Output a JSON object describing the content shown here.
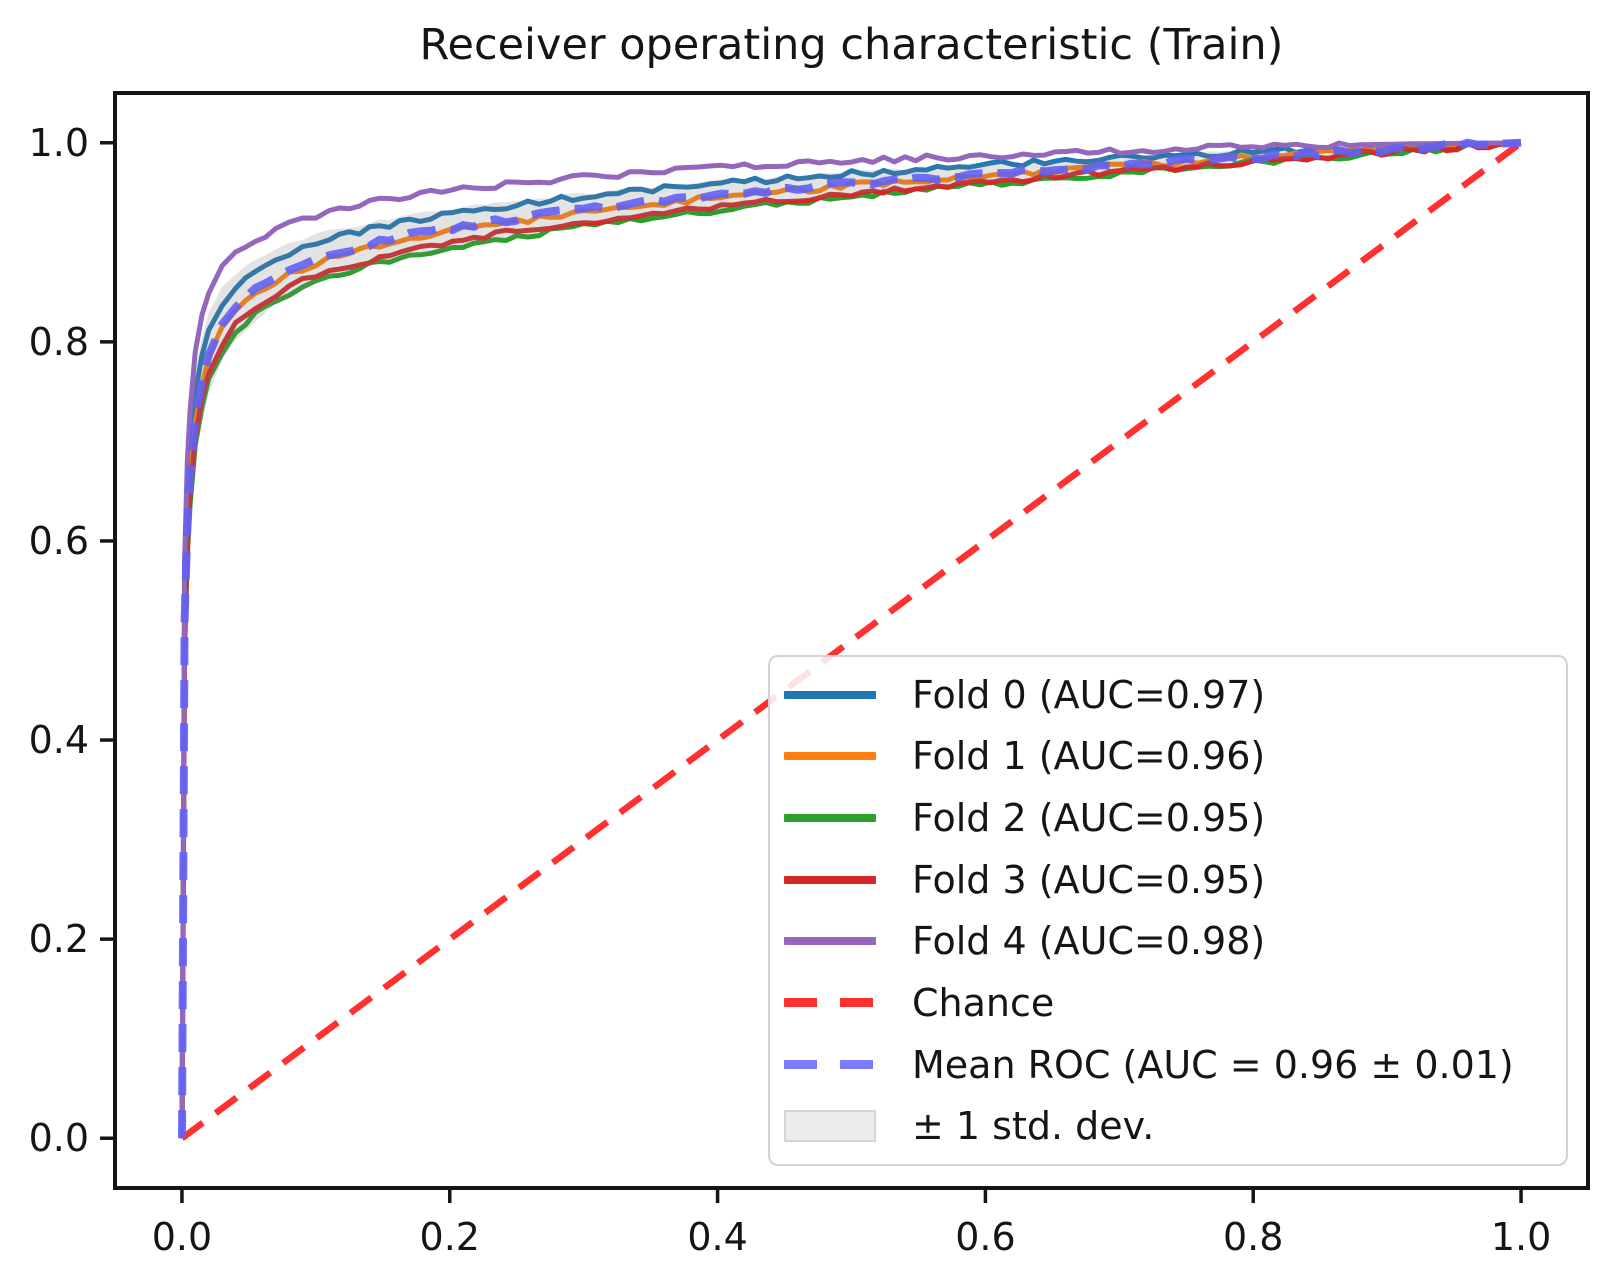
{
  "figure": {
    "title": "Receiver operating characteristic (Train)"
  },
  "chart_data": {
    "type": "line",
    "title": "Receiver operating characteristic (Train)",
    "xlabel": "",
    "ylabel": "",
    "xlim": [
      -0.05,
      1.05
    ],
    "ylim": [
      -0.05,
      1.05
    ],
    "grid": false,
    "legend_position": "lower right",
    "xticks": {
      "values": [
        0.0,
        0.2,
        0.4,
        0.6,
        0.8,
        1.0
      ],
      "labels": [
        "0.0",
        "0.2",
        "0.4",
        "0.6",
        "0.8",
        "1.0"
      ]
    },
    "yticks": {
      "values": [
        0.0,
        0.2,
        0.4,
        0.6,
        0.8,
        1.0
      ],
      "labels": [
        "0.0",
        "0.2",
        "0.4",
        "0.6",
        "0.8",
        "1.0"
      ]
    },
    "x": [
      0,
      0.002,
      0.004,
      0.006,
      0.01,
      0.015,
      0.02,
      0.03,
      0.04,
      0.055,
      0.07,
      0.09,
      0.11,
      0.14,
      0.17,
      0.21,
      0.25,
      0.3,
      0.36,
      0.42,
      0.5,
      0.58,
      0.66,
      0.75,
      0.84,
      0.92,
      1.0
    ],
    "series": [
      {
        "name": "Fold 0 (AUC=0.97)",
        "auc": 0.97,
        "color": "#1f77b4",
        "style": "solid",
        "width": 5,
        "tpr": [
          0,
          0.55,
          0.64,
          0.69,
          0.75,
          0.785,
          0.81,
          0.838,
          0.855,
          0.87,
          0.882,
          0.894,
          0.903,
          0.913,
          0.921,
          0.93,
          0.938,
          0.946,
          0.954,
          0.961,
          0.969,
          0.976,
          0.982,
          0.988,
          0.993,
          0.997,
          1
        ]
      },
      {
        "name": "Fold 1 (AUC=0.96)",
        "auc": 0.96,
        "color": "#ff7f0e",
        "style": "solid",
        "width": 5,
        "tpr": [
          0,
          0.515,
          0.61,
          0.66,
          0.72,
          0.757,
          0.783,
          0.813,
          0.832,
          0.848,
          0.861,
          0.874,
          0.884,
          0.895,
          0.904,
          0.913,
          0.921,
          0.93,
          0.939,
          0.948,
          0.957,
          0.965,
          0.973,
          0.981,
          0.988,
          0.995,
          1
        ]
      },
      {
        "name": "Fold 2 (AUC=0.95)",
        "auc": 0.95,
        "color": "#2ca02c",
        "style": "solid",
        "width": 5,
        "tpr": [
          0,
          0.49,
          0.585,
          0.635,
          0.695,
          0.733,
          0.76,
          0.79,
          0.81,
          0.827,
          0.841,
          0.855,
          0.866,
          0.877,
          0.887,
          0.897,
          0.906,
          0.916,
          0.926,
          0.936,
          0.946,
          0.956,
          0.965,
          0.975,
          0.984,
          0.992,
          1
        ]
      },
      {
        "name": "Fold 3 (AUC=0.95)",
        "auc": 0.95,
        "color": "#d62728",
        "style": "solid",
        "width": 5,
        "tpr": [
          0,
          0.5,
          0.595,
          0.645,
          0.705,
          0.742,
          0.768,
          0.798,
          0.818,
          0.834,
          0.848,
          0.861,
          0.871,
          0.882,
          0.892,
          0.902,
          0.911,
          0.92,
          0.93,
          0.939,
          0.949,
          0.958,
          0.967,
          0.976,
          0.985,
          0.993,
          1
        ]
      },
      {
        "name": "Fold 4 (AUC=0.98)",
        "auc": 0.98,
        "color": "#9467bd",
        "style": "solid",
        "width": 5,
        "tpr": [
          0,
          0.58,
          0.68,
          0.73,
          0.79,
          0.825,
          0.85,
          0.875,
          0.89,
          0.902,
          0.912,
          0.923,
          0.931,
          0.94,
          0.947,
          0.953,
          0.959,
          0.965,
          0.971,
          0.976,
          0.982,
          0.986,
          0.99,
          0.994,
          0.997,
          0.999,
          1
        ]
      },
      {
        "name": "Mean ROC (AUC = 0.96 ± 0.01)",
        "auc": 0.96,
        "auc_std": 0.01,
        "color": "#6262f5",
        "style": "dashed",
        "width": 8,
        "tpr": [
          0,
          0.52,
          0.615,
          0.665,
          0.725,
          0.762,
          0.788,
          0.818,
          0.836,
          0.852,
          0.865,
          0.878,
          0.888,
          0.898,
          0.907,
          0.916,
          0.924,
          0.933,
          0.942,
          0.95,
          0.959,
          0.967,
          0.974,
          0.982,
          0.989,
          0.995,
          1
        ]
      }
    ],
    "chance": {
      "name": "Chance",
      "color": "#ff3030",
      "style": "dashed",
      "width": 6.5,
      "x": [
        0,
        1
      ],
      "y": [
        0,
        1
      ]
    },
    "band": {
      "name": "± 1 std. dev.",
      "color": "#808080",
      "opacity": 0.22,
      "upper": [
        0,
        0.57,
        0.665,
        0.713,
        0.77,
        0.804,
        0.828,
        0.854,
        0.869,
        0.882,
        0.893,
        0.904,
        0.912,
        0.92,
        0.928,
        0.935,
        0.942,
        0.949,
        0.957,
        0.963,
        0.971,
        0.977,
        0.982,
        0.989,
        0.994,
        0.998,
        1
      ],
      "lower": [
        0,
        0.47,
        0.565,
        0.617,
        0.68,
        0.72,
        0.748,
        0.782,
        0.803,
        0.822,
        0.837,
        0.852,
        0.864,
        0.876,
        0.886,
        0.897,
        0.906,
        0.917,
        0.927,
        0.937,
        0.947,
        0.957,
        0.966,
        0.975,
        0.984,
        0.992,
        1
      ]
    },
    "legend": {
      "entries": [
        {
          "label": "Fold 0 (AUC=0.97)",
          "color": "#1f77b4",
          "style": "solid"
        },
        {
          "label": "Fold 1 (AUC=0.96)",
          "color": "#ff7f0e",
          "style": "solid"
        },
        {
          "label": "Fold 2 (AUC=0.95)",
          "color": "#2ca02c",
          "style": "solid"
        },
        {
          "label": "Fold 3 (AUC=0.95)",
          "color": "#d62728",
          "style": "solid"
        },
        {
          "label": "Fold 4 (AUC=0.98)",
          "color": "#9467bd",
          "style": "solid"
        },
        {
          "label": "Chance",
          "color": "#ff3030",
          "style": "dashed"
        },
        {
          "label": "Mean ROC (AUC = 0.96 ± 0.01)",
          "color": "#7b7bff",
          "style": "dashed"
        },
        {
          "label": "± 1 std. dev.",
          "color": "#ececec",
          "style": "patch"
        }
      ]
    }
  }
}
